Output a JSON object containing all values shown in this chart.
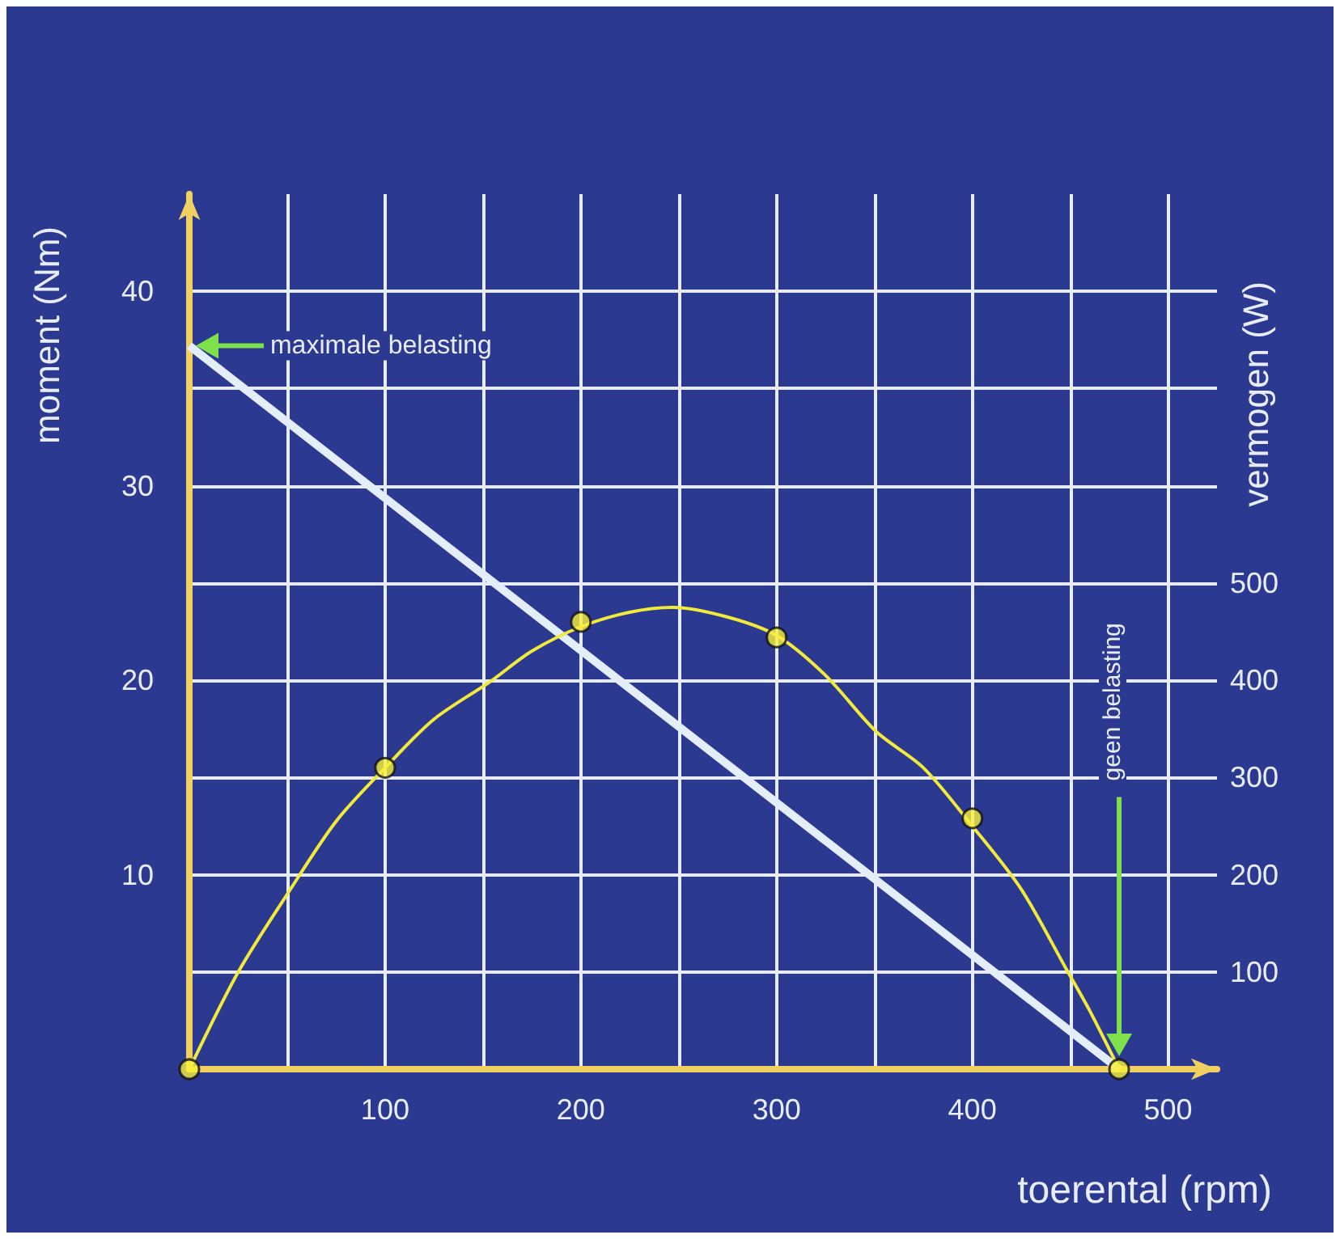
{
  "chart_data": {
    "type": "line",
    "xlabel": "toerental (rpm)",
    "ylabel": "moment (Nm)",
    "y2label": "vermogen (W)",
    "xlim": [
      0,
      525
    ],
    "ylim": [
      0,
      45
    ],
    "y2lim": [
      0,
      900
    ],
    "xticks": [
      {
        "value": 50,
        "label": null
      },
      100,
      {
        "value": 150,
        "label": null
      },
      200,
      {
        "value": 250,
        "label": null
      },
      300,
      {
        "value": 350,
        "label": null
      },
      400,
      {
        "value": 450,
        "label": null
      },
      500
    ],
    "yticks": [
      {
        "value": 5,
        "label": null
      },
      10,
      {
        "value": 15,
        "label": null
      },
      20,
      {
        "value": 25,
        "label": null
      },
      30,
      {
        "value": 35,
        "label": null
      },
      40
    ],
    "y2ticks": [
      100,
      200,
      300,
      400,
      500
    ],
    "grid": true,
    "series": [
      {
        "color": "#e4eefa",
        "marker": "none",
        "x": [
          0,
          475
        ],
        "values": [
          37.2,
          0
        ]
      },
      {
        "color": "#f2ea3a",
        "marker": "none",
        "axis": "y2",
        "x": [
          0,
          25,
          51,
          75,
          100,
          125,
          154,
          175,
          200,
          225,
          247,
          275,
          300,
          325,
          351,
          375,
          400,
          425,
          448,
          460,
          475
        ],
        "values": [
          0,
          100,
          183,
          255,
          310,
          360,
          399,
          430,
          455,
          470,
          475,
          465,
          446,
          405,
          347,
          310,
          250,
          185,
          103,
          60,
          0
        ]
      },
      {
        "type": "scatter",
        "color": "#f7f03c",
        "marker": "circle",
        "axis": "y2",
        "x": [
          0,
          100,
          200,
          300,
          400,
          475
        ],
        "values": [
          0,
          310,
          460,
          444,
          258,
          0
        ]
      }
    ],
    "annotations": [
      "maximale belasting",
      "geen belasting"
    ]
  }
}
